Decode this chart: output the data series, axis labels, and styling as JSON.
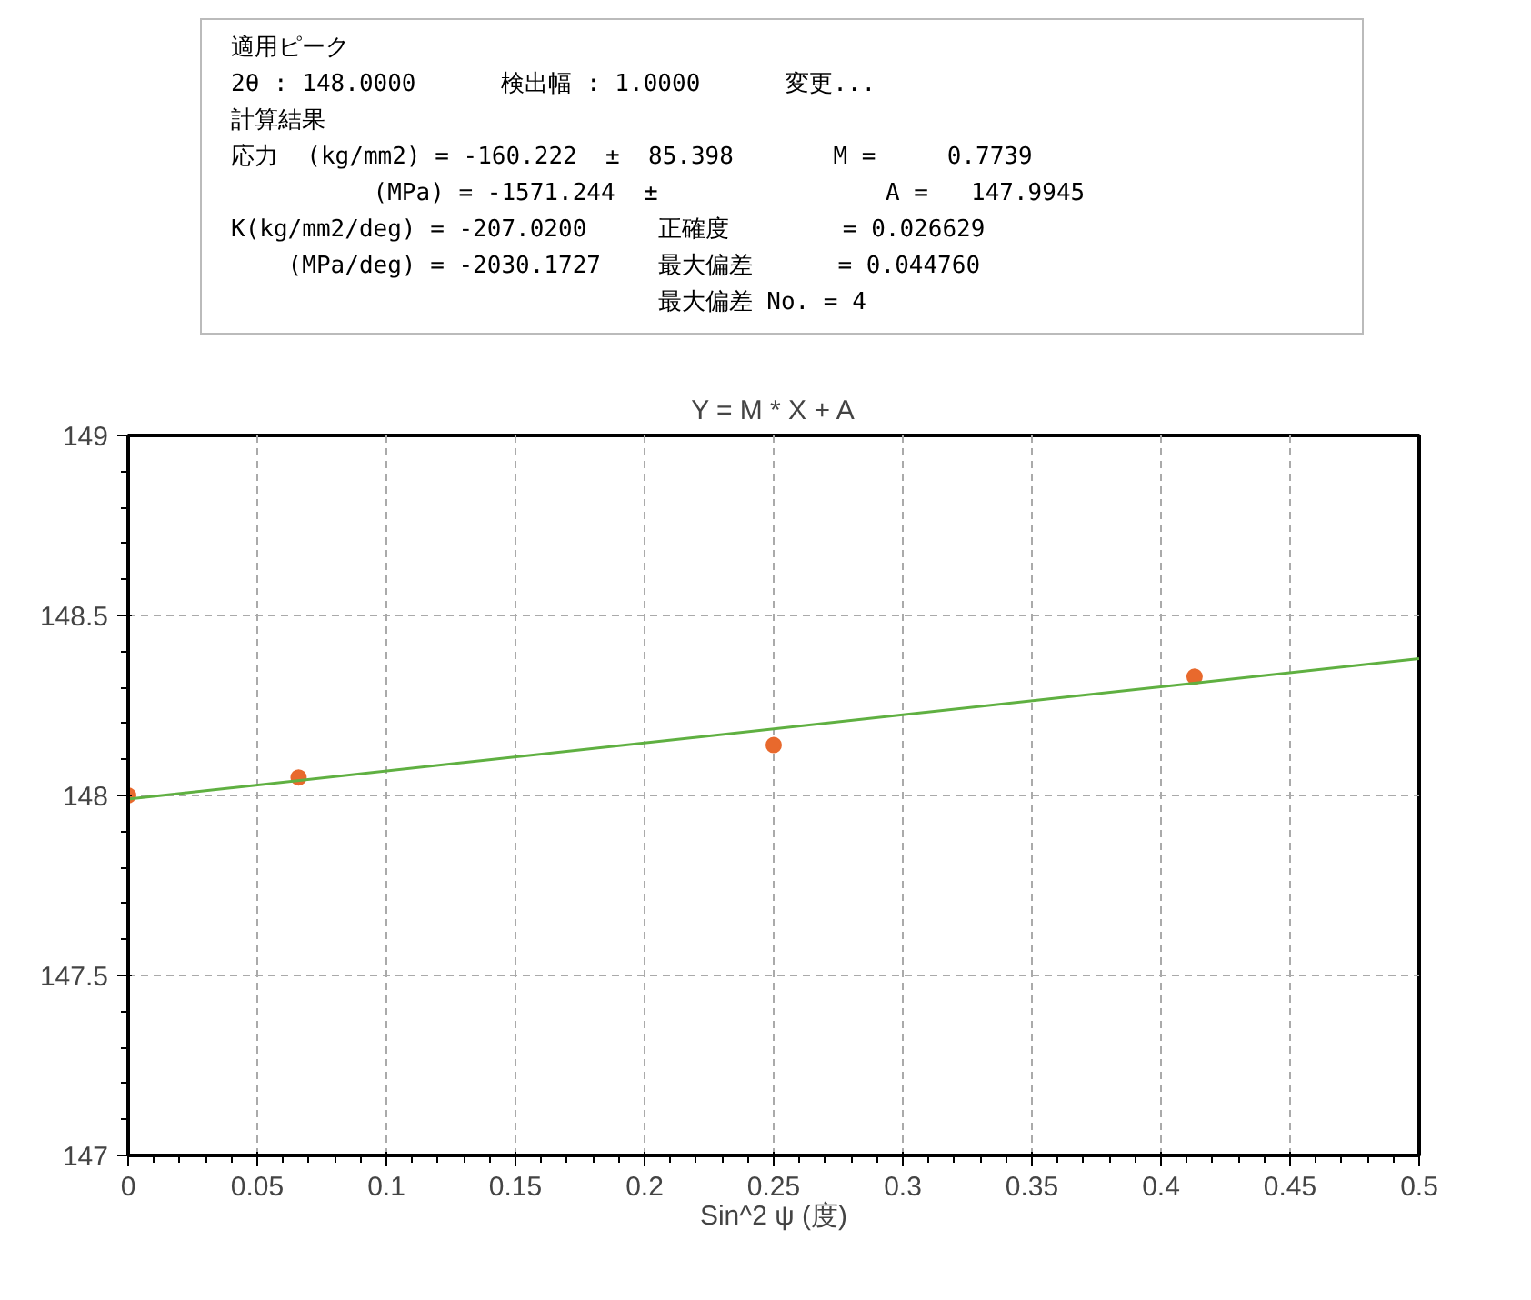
{
  "chart_data": {
    "type": "scatter",
    "title": "Y = M * X + A",
    "xlabel": "Sin^2 ψ (度)",
    "annotations": [
      "適用ピーク",
      "2θ : 148.0000      検出幅 : 1.0000      変更...",
      "計算結果",
      "応力  (kg/mm2) = -160.222  ±  85.398       M =     0.7739",
      "          (MPa) = -1571.244  ±                A =   147.9945",
      "K(kg/mm2/deg) = -207.0200     正確度        = 0.026629",
      "    (MPa/deg) = -2030.1727    最大偏差      = 0.044760",
      "                              最大偏差 No. = 4"
    ],
    "series": [
      {
        "color": "#e8692d",
        "x": [
          0,
          0.066,
          0.25,
          0.413
        ],
        "values": [
          148.0,
          148.05,
          148.14,
          148.33
        ]
      },
      {
        "type": "line",
        "marker": "none",
        "color": "#5fb041",
        "x": [
          0,
          0.5
        ],
        "values": [
          147.99,
          148.38
        ]
      }
    ],
    "xlim": [
      0,
      0.5
    ],
    "ylim": [
      147,
      149
    ],
    "xticks": [
      0,
      0.05,
      0.1,
      0.15,
      0.2,
      0.25,
      0.3,
      0.35,
      0.4,
      0.45,
      0.5
    ],
    "yticks": [
      147,
      147.5,
      148,
      148.5,
      149
    ],
    "grid": true,
    "marker": "circle"
  }
}
